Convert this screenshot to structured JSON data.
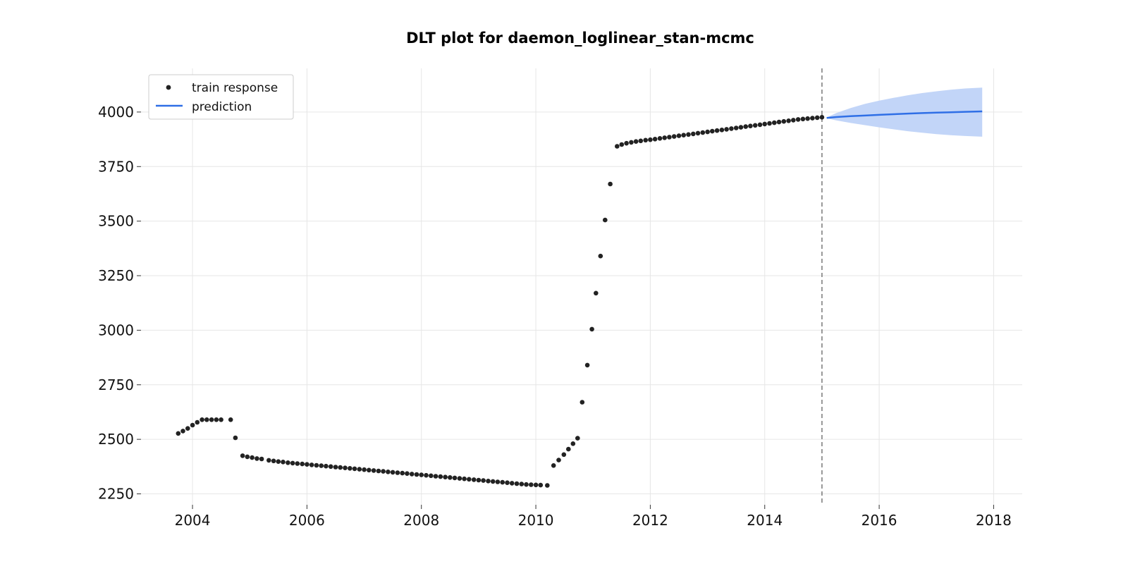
{
  "chart_data": {
    "type": "line",
    "title": "DLT plot for daemon_loglinear_stan-mcmc",
    "xlabel": "",
    "ylabel": "",
    "xlim": [
      2003.1,
      2018.5
    ],
    "ylim": [
      2200,
      4200
    ],
    "x_ticks": [
      2004,
      2006,
      2008,
      2010,
      2012,
      2014,
      2016,
      2018
    ],
    "y_ticks": [
      2250,
      2500,
      2750,
      3000,
      3250,
      3500,
      3750,
      4000
    ],
    "grid": true,
    "legend": {
      "position": "top-left",
      "entries": [
        {
          "label": "train response",
          "marker": "dot"
        },
        {
          "label": "prediction",
          "marker": "line"
        }
      ]
    },
    "colors": {
      "train": "#222222",
      "prediction": "#2f6fe6",
      "band": "#bfd3f8",
      "cutoff": "#777777"
    },
    "cutoff_x": 2015.0,
    "series": [
      {
        "name": "train response",
        "kind": "scatter",
        "x": [
          2003.75,
          2003.833,
          2003.917,
          2004.0,
          2004.083,
          2004.167,
          2004.25,
          2004.333,
          2004.417,
          2004.5,
          2004.667,
          2004.75,
          2004.875,
          2004.958,
          2005.042,
          2005.125,
          2005.208,
          2005.333,
          2005.417,
          2005.5,
          2005.583,
          2005.667,
          2005.75,
          2005.833,
          2005.917,
          2006.0,
          2006.083,
          2006.167,
          2006.25,
          2006.333,
          2006.417,
          2006.5,
          2006.583,
          2006.667,
          2006.75,
          2006.833,
          2006.917,
          2007.0,
          2007.083,
          2007.167,
          2007.25,
          2007.333,
          2007.417,
          2007.5,
          2007.583,
          2007.667,
          2007.75,
          2007.833,
          2007.917,
          2008.0,
          2008.083,
          2008.167,
          2008.25,
          2008.333,
          2008.417,
          2008.5,
          2008.583,
          2008.667,
          2008.75,
          2008.833,
          2008.917,
          2009.0,
          2009.083,
          2009.167,
          2009.25,
          2009.333,
          2009.417,
          2009.5,
          2009.583,
          2009.667,
          2009.75,
          2009.833,
          2009.917,
          2010.0,
          2010.083,
          2010.2,
          2010.31,
          2010.4,
          2010.49,
          2010.57,
          2010.65,
          2010.73,
          2010.81,
          2010.9,
          2010.98,
          2011.05,
          2011.13,
          2011.21,
          2011.3,
          2011.42,
          2011.5,
          2011.583,
          2011.667,
          2011.75,
          2011.833,
          2011.917,
          2012.0,
          2012.083,
          2012.167,
          2012.25,
          2012.333,
          2012.417,
          2012.5,
          2012.583,
          2012.667,
          2012.75,
          2012.833,
          2012.917,
          2013.0,
          2013.083,
          2013.167,
          2013.25,
          2013.333,
          2013.417,
          2013.5,
          2013.583,
          2013.667,
          2013.75,
          2013.833,
          2013.917,
          2014.0,
          2014.083,
          2014.167,
          2014.25,
          2014.333,
          2014.417,
          2014.5,
          2014.583,
          2014.667,
          2014.75,
          2014.833,
          2014.917,
          2015.0
        ],
        "y": [
          2527,
          2538,
          2550,
          2565,
          2578,
          2590,
          2590,
          2590,
          2590,
          2590,
          2590,
          2507,
          2425,
          2420,
          2416,
          2412,
          2410,
          2404,
          2401,
          2398,
          2396,
          2393,
          2391,
          2389,
          2387,
          2385,
          2383,
          2381,
          2379,
          2377,
          2375,
          2373,
          2371,
          2369,
          2367,
          2365,
          2363,
          2361,
          2359,
          2357,
          2355,
          2353,
          2351,
          2349,
          2347,
          2345,
          2343,
          2341,
          2339,
          2337,
          2335,
          2333,
          2331,
          2329,
          2327,
          2325,
          2323,
          2321,
          2319,
          2317,
          2315,
          2313,
          2311,
          2309,
          2307,
          2305,
          2303,
          2301,
          2299,
          2297,
          2295,
          2293,
          2292,
          2291,
          2290,
          2289,
          2380,
          2405,
          2430,
          2455,
          2480,
          2505,
          2670,
          2840,
          3005,
          3170,
          3340,
          3505,
          3670,
          3843,
          3851,
          3857,
          3861,
          3865,
          3868,
          3871,
          3873,
          3876,
          3879,
          3882,
          3885,
          3888,
          3891,
          3894,
          3897,
          3900,
          3903,
          3906,
          3909,
          3912,
          3915,
          3918,
          3921,
          3924,
          3927,
          3930,
          3933,
          3936,
          3939,
          3942,
          3945,
          3948,
          3951,
          3954,
          3957,
          3960,
          3963,
          3966,
          3968,
          3970,
          3972,
          3974,
          3976
        ]
      },
      {
        "name": "prediction",
        "kind": "line",
        "x": [
          2015.083,
          2015.25,
          2015.5,
          2015.75,
          2016.0,
          2016.25,
          2016.5,
          2016.75,
          2017.0,
          2017.25,
          2017.5,
          2017.8
        ],
        "y": [
          3973,
          3977,
          3981,
          3984,
          3987,
          3990,
          3993,
          3995,
          3997,
          3999,
          4001,
          4003
        ],
        "band_upper": [
          3975,
          3995,
          4018,
          4037,
          4052,
          4065,
          4077,
          4087,
          4095,
          4102,
          4108,
          4112
        ],
        "band_lower": [
          3971,
          3962,
          3950,
          3940,
          3930,
          3921,
          3912,
          3905,
          3899,
          3894,
          3890,
          3887
        ]
      }
    ]
  }
}
